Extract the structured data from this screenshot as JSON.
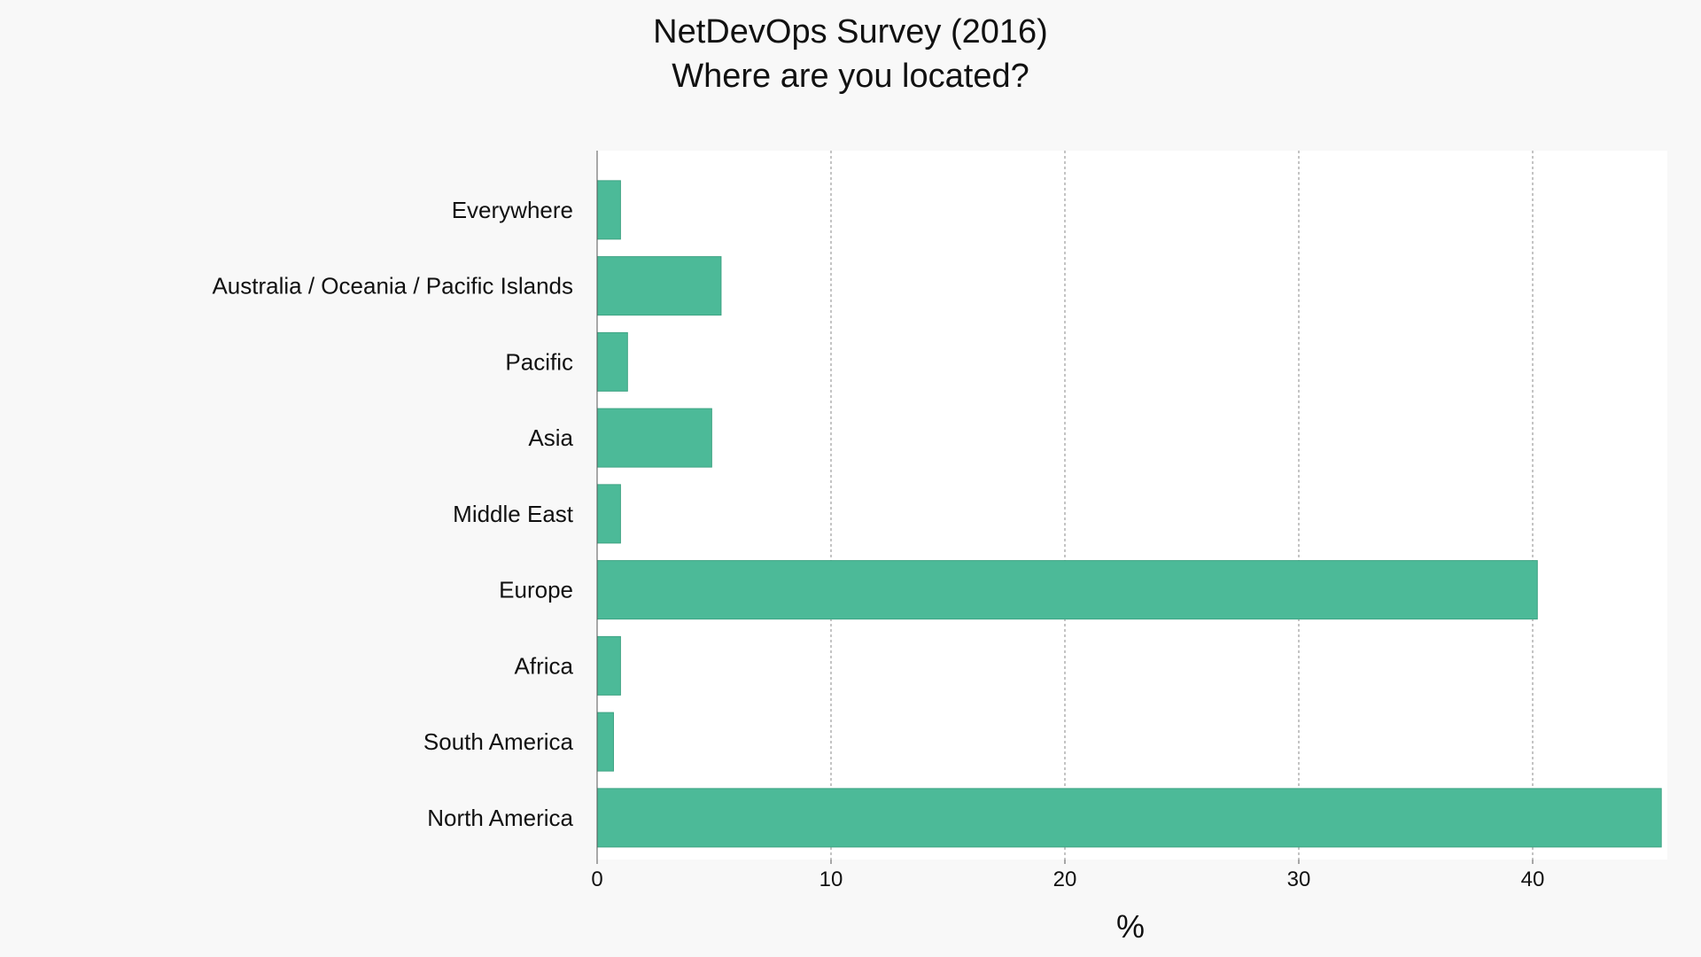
{
  "chart_data": {
    "type": "bar",
    "orientation": "horizontal",
    "title": "NetDevOps Survey (2016)",
    "subtitle": "Where are you located?",
    "xlabel": "%",
    "ylabel": "",
    "xlim": [
      0,
      46
    ],
    "xticks": [
      0,
      10,
      20,
      30,
      40
    ],
    "grid": "vertical dashed",
    "categories": [
      "Everywhere",
      "Australia / Oceania / Pacific Islands",
      "Pacific",
      "Asia",
      "Middle East",
      "Europe",
      "Africa",
      "South America",
      "North America"
    ],
    "values": [
      1.0,
      5.3,
      1.3,
      4.9,
      1.0,
      40.2,
      1.0,
      0.7,
      45.5
    ],
    "colors": {
      "bar": "#4cba98",
      "bar_edge": "#3fa383",
      "grid": "#888888",
      "axis": "#555555",
      "plot_bg": "#ffffff",
      "page_bg": "#f8f8f8"
    }
  }
}
